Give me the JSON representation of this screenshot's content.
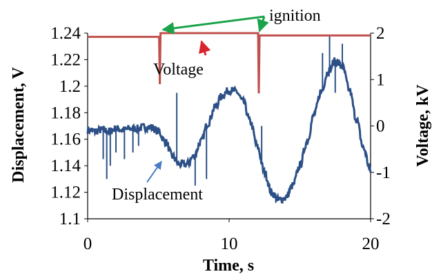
{
  "chart_data": {
    "type": "line",
    "title": "",
    "xlabel": "Time, s",
    "ylabel_left": "Displacement, V",
    "ylabel_right": "Voltage, kV",
    "xlim": [
      0,
      20
    ],
    "ylim_left": [
      1.1,
      1.24
    ],
    "ylim_right": [
      -2,
      2
    ],
    "x_ticks": [
      "0",
      "10",
      "20"
    ],
    "y_left_ticks": [
      "1.1",
      "1.12",
      "1.14",
      "1.16",
      "1.18",
      "1.2",
      "1.22",
      "1.24"
    ],
    "y_right_ticks": [
      "-2",
      "-1",
      "0",
      "1",
      "2"
    ],
    "grid": false,
    "legend": "none",
    "annotations": {
      "ignition": "ignition",
      "voltage": "Voltage",
      "displacement": "Displacement"
    },
    "series": [
      {
        "axis": "left",
        "color": "#2b4f86",
        "x": [
          0,
          0.5,
          1,
          1.5,
          2,
          2.5,
          3,
          3.5,
          4,
          4.5,
          5,
          5.5,
          6,
          6.5,
          7,
          7.5,
          8,
          8.5,
          9,
          9.5,
          10,
          10.5,
          11,
          11.5,
          12,
          12.5,
          13,
          13.5,
          14,
          14.5,
          15,
          15.5,
          16,
          16.5,
          17,
          17.5,
          18,
          18.5,
          19,
          19.5,
          20
        ],
        "values": [
          1.167,
          1.166,
          1.167,
          1.166,
          1.168,
          1.167,
          1.168,
          1.168,
          1.169,
          1.169,
          1.166,
          1.158,
          1.147,
          1.141,
          1.141,
          1.147,
          1.158,
          1.172,
          1.184,
          1.193,
          1.197,
          1.196,
          1.188,
          1.173,
          1.154,
          1.135,
          1.12,
          1.114,
          1.116,
          1.125,
          1.14,
          1.158,
          1.178,
          1.196,
          1.211,
          1.219,
          1.215,
          1.197,
          1.175,
          1.153,
          1.136
        ]
      },
      {
        "axis": "right",
        "color": "#c0504d",
        "x": [
          0,
          5.05,
          5.1,
          5.15,
          12.05,
          12.1,
          12.15,
          20
        ],
        "values": [
          1.92,
          1.92,
          0.9,
          2.0,
          2.0,
          0.7,
          1.95,
          1.95
        ]
      }
    ],
    "spikes_left": [
      {
        "x": 1.1,
        "y": 1.145
      },
      {
        "x": 1.35,
        "y": 1.13
      },
      {
        "x": 1.6,
        "y": 1.14
      },
      {
        "x": 2.0,
        "y": 1.15
      },
      {
        "x": 2.6,
        "y": 1.145
      },
      {
        "x": 3.2,
        "y": 1.15
      },
      {
        "x": 3.6,
        "y": 1.155
      },
      {
        "x": 6.3,
        "y": 1.195
      },
      {
        "x": 7.6,
        "y": 1.125
      },
      {
        "x": 8.4,
        "y": 1.13
      },
      {
        "x": 12.3,
        "y": 1.17
      },
      {
        "x": 16.6,
        "y": 1.225
      },
      {
        "x": 17.1,
        "y": 1.238
      },
      {
        "x": 17.5,
        "y": 1.195
      },
      {
        "x": 18.0,
        "y": 1.232
      }
    ]
  }
}
